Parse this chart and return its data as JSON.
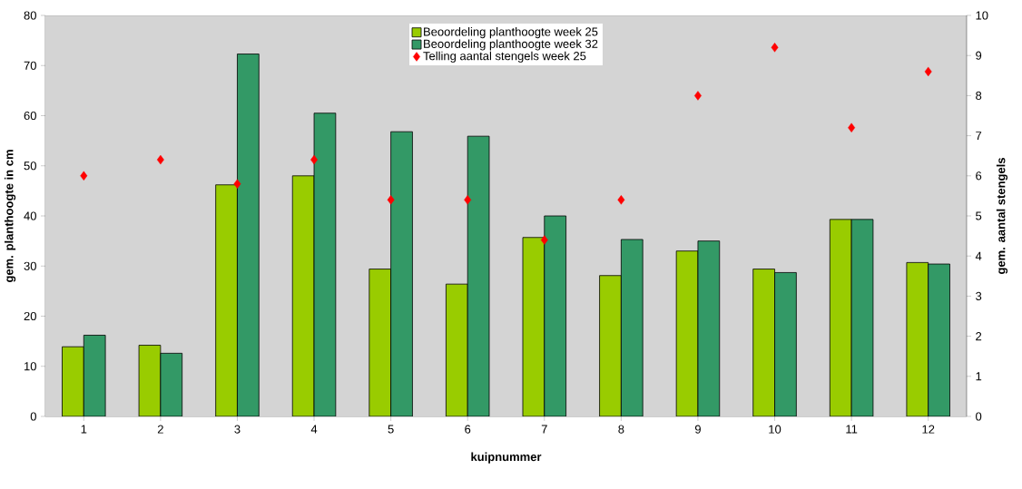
{
  "chart_data": {
    "type": "bar",
    "categories": [
      "1",
      "2",
      "3",
      "4",
      "5",
      "6",
      "7",
      "8",
      "9",
      "10",
      "11",
      "12"
    ],
    "series": [
      {
        "name": "Beoordeling planthoogte week 25",
        "color": "#99cc00",
        "values": [
          13.9,
          14.2,
          46.2,
          48.0,
          29.4,
          26.4,
          35.7,
          28.1,
          33.0,
          29.4,
          39.3,
          30.7
        ]
      },
      {
        "name": "Beoordeling planthoogte week 32",
        "color": "#339966",
        "values": [
          16.2,
          12.6,
          72.3,
          60.5,
          56.8,
          55.9,
          40.0,
          35.3,
          35.0,
          28.7,
          39.3,
          30.4
        ]
      },
      {
        "name": "Telling aantal stengels week 25",
        "type": "scatter",
        "axis": "y2",
        "marker": "diamond",
        "color": "#ff0000",
        "values": [
          6.0,
          6.4,
          5.8,
          6.4,
          5.4,
          5.4,
          4.4,
          5.4,
          8.0,
          9.2,
          7.2,
          8.6
        ]
      }
    ],
    "xlabel": "kuipnummer",
    "ylabel": "gem. planthoogte in cm",
    "y2label": "gem. aantal stengels",
    "ylim": [
      0,
      80
    ],
    "yticks": [
      0,
      10,
      20,
      30,
      40,
      50,
      60,
      70,
      80
    ],
    "y2lim": [
      0,
      10
    ],
    "y2ticks": [
      0,
      1,
      2,
      3,
      4,
      5,
      6,
      7,
      8,
      9,
      10
    ],
    "legend": "top"
  }
}
